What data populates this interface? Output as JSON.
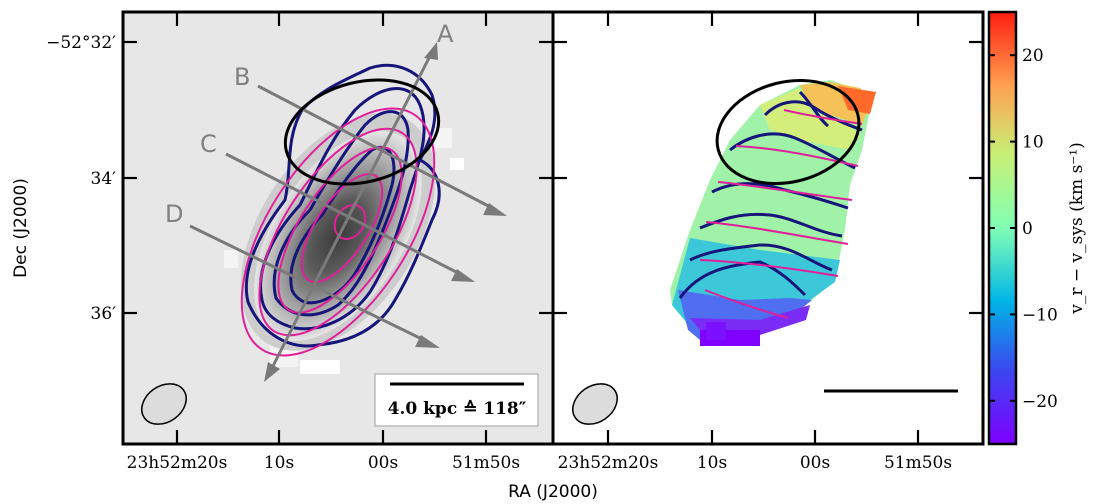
{
  "figure": {
    "y_axis_label": "Dec (J2000)",
    "x_axis_label": "RA (J2000)"
  },
  "chart_data": [
    {
      "type": "heatmap",
      "panel": "left",
      "description_visible": "grayscale intensity map with blue and magenta contours",
      "y_ticks": [
        "−52°32′",
        "34′",
        "36′"
      ],
      "x_ticks": [
        "23h52m20s",
        "10s",
        "00s",
        "51m50s"
      ],
      "cut_labels": [
        "A",
        "B",
        "C",
        "D"
      ],
      "scale_bar_label": "4.0 kpc ≙ 118″",
      "colors": {
        "contour_blue": "#15157a",
        "contour_magenta": "#e0209a",
        "cut_lines": "#7a7a7a",
        "background": "#e6e6e6"
      }
    },
    {
      "type": "heatmap",
      "panel": "right",
      "x_ticks": [
        "23h52m20s",
        "10s",
        "00s",
        "51m50s"
      ],
      "colorbar": {
        "label": "v_r − v_sys (km s⁻¹)",
        "range": [
          -25,
          25
        ],
        "ticks": [
          20,
          10,
          0,
          -10,
          -20
        ],
        "tick_labels": [
          "20",
          "10",
          "0",
          "−10",
          "−20"
        ],
        "colormap": "rainbow"
      },
      "colors": {
        "contour_blue": "#15157a",
        "contour_magenta": "#e0209a"
      }
    }
  ]
}
